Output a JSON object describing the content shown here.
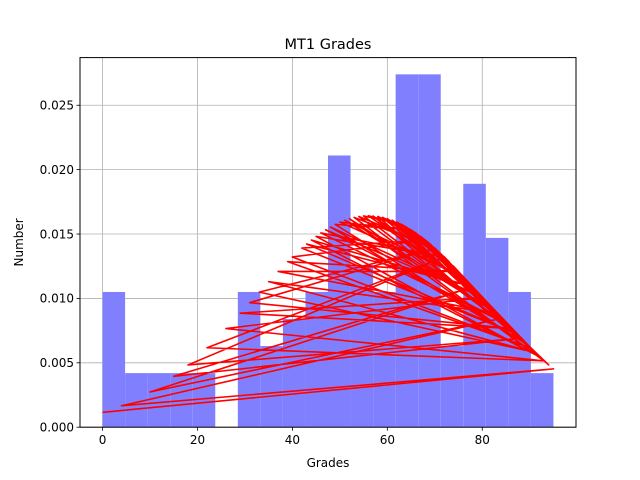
{
  "chart_data": {
    "type": "bar",
    "title": "MT1 Grades",
    "xlabel": "Grades",
    "ylabel": "Number",
    "xlim": [
      -4.75,
      99.75
    ],
    "ylim": [
      0,
      0.0287
    ],
    "xticks": [
      0,
      20,
      40,
      60,
      80
    ],
    "xtick_labels": [
      "0",
      "20",
      "40",
      "60",
      "80"
    ],
    "yticks": [
      0,
      0.005,
      0.01,
      0.015,
      0.02,
      0.025
    ],
    "ytick_labels": [
      "0.000",
      "0.005",
      "0.010",
      "0.015",
      "0.020",
      "0.025"
    ],
    "grid": true,
    "bar_color": "#8080ff",
    "line_color": "#ff0000",
    "histogram": {
      "bin_edges": [
        0,
        4.75,
        9.5,
        14.25,
        19,
        23.75,
        28.5,
        33.25,
        38,
        42.75,
        47.5,
        52.25,
        57,
        61.75,
        66.5,
        71.25,
        76,
        80.75,
        85.5,
        90.25,
        95
      ],
      "heights": [
        0.0105,
        0.0042,
        0.0042,
        0.0042,
        0.0042,
        0,
        0.0105,
        0.0063,
        0.0084,
        0.0105,
        0.0211,
        0.0126,
        0.0105,
        0.0274,
        0.0274,
        0.0063,
        0.0189,
        0.0147,
        0.0105,
        0.0042
      ]
    },
    "normal_pdf": {
      "mean": 56,
      "std": 24.3,
      "x": [
        0,
        95,
        4,
        84,
        10,
        78,
        15,
        88,
        18,
        72,
        22,
        93,
        26,
        80,
        29,
        86,
        31,
        70,
        33,
        91,
        35,
        83,
        37,
        75,
        39,
        90,
        40,
        68,
        42,
        87,
        43,
        78,
        44,
        92,
        45,
        72,
        46,
        85,
        47,
        80,
        48,
        89,
        49,
        65,
        50,
        76,
        51,
        83,
        52,
        93,
        53,
        70,
        54,
        86,
        55,
        63,
        56,
        79,
        57,
        90,
        58,
        68,
        59,
        82,
        60,
        74,
        61,
        88,
        62,
        66,
        63,
        78,
        64,
        92,
        65,
        71,
        66,
        84,
        67,
        69,
        68,
        76,
        69,
        87,
        70,
        73,
        72,
        81,
        74,
        90,
        76,
        85,
        79,
        92,
        82,
        88,
        86,
        94,
        90,
        92
      ]
    }
  }
}
